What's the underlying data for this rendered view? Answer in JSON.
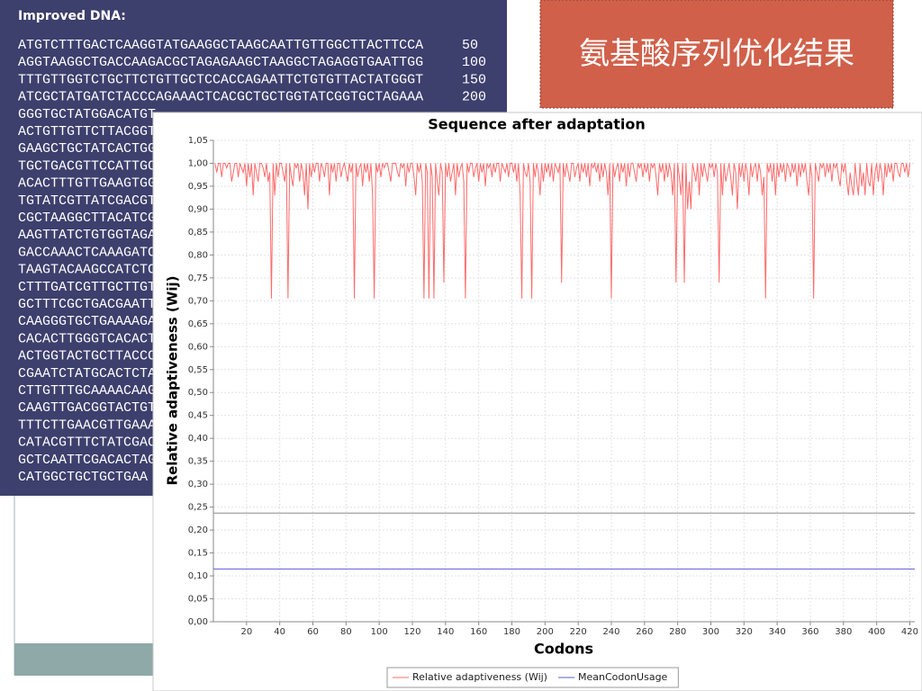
{
  "panel": {
    "title": "Improved DNA:",
    "lines": [
      {
        "sequence": "ATGTCTTTGACTCAAGGTATGAAGGCTAAGCAATTGTTGGCTTACTTCCA",
        "count": "50"
      },
      {
        "sequence": "AGGTAAGGCTGACCAAGACGCTAGAGAAGCTAAGGCTAGAGGTGAATTGG",
        "count": "100"
      },
      {
        "sequence": "TTTGTTGGTCTGCTTCTGTTGCTCCACCAGAATTCTGTGTTACTATGGGT",
        "count": "150"
      },
      {
        "sequence": "ATCGCTATGATCTACCCAGAAACTCACGCTGCTGGTATCGGTGCTAGAAA",
        "count": "200"
      },
      {
        "sequence": "GGGTGCTATGGACATGT"
      },
      {
        "sequence": "ACTGTTGTTCTTACGGT"
      },
      {
        "sequence": "GAAGCTGCTATCACTGG"
      },
      {
        "sequence": "TGCTGACGTTCCATTGC"
      },
      {
        "sequence": "ACACTTTGTTGAAGTGG"
      },
      {
        "sequence": "TGTATCGTTATCGACGT"
      },
      {
        "sequence": "CGCTAAGGCTTACATCG"
      },
      {
        "sequence": "AAGTTATCTGTGGTAGA"
      },
      {
        "sequence": "GACCAAACTCAAAGATC"
      },
      {
        "sequence": "TAAGTACAAGCCATCTC"
      },
      {
        "sequence": "CTTTGATCGTTGCTTGT"
      },
      {
        "sequence": "GCTTTCGCTGACGAATT"
      },
      {
        "sequence": "CAAGGGTGCTGAAAAGA"
      },
      {
        "sequence": "CACACTTGGGTCACACT"
      },
      {
        "sequence": "ACTGGTACTGCTTACCC"
      },
      {
        "sequence": "CGAATCTATGCACTCTA"
      },
      {
        "sequence": "CTTGTTTGCAAAACAAG"
      },
      {
        "sequence": "CAAGTTGACGGTACTGT"
      },
      {
        "sequence": "TTTCTTGAACGTTGAAA"
      },
      {
        "sequence": "CATACGTTTCTATCGAC"
      },
      {
        "sequence": "GCTCAATTCGACACTAG"
      },
      {
        "sequence": "CATGGCTGCTGCTGAA"
      }
    ]
  },
  "banner": {
    "title": "氨基酸序列优化结果"
  },
  "chart_data": {
    "type": "line",
    "title": "Sequence after adaptation",
    "x_label": "Codons",
    "y_label": "Relative adaptiveness (Wij)",
    "xlim": [
      0,
      423
    ],
    "ylim": [
      0,
      1.05
    ],
    "xticks": [
      20,
      40,
      60,
      80,
      100,
      120,
      140,
      160,
      180,
      200,
      220,
      240,
      260,
      280,
      300,
      320,
      340,
      360,
      380,
      400,
      420
    ],
    "yticks": [
      {
        "value": 0,
        "label": "0,00"
      },
      {
        "value": 0.05,
        "label": "0,05"
      },
      {
        "value": 0.1,
        "label": "0,10"
      },
      {
        "value": 0.15,
        "label": "0,15"
      },
      {
        "value": 0.2,
        "label": "0,20"
      },
      {
        "value": 0.25,
        "label": "0,25"
      },
      {
        "value": 0.3,
        "label": "0,30"
      },
      {
        "value": 0.35,
        "label": "0,35"
      },
      {
        "value": 0.4,
        "label": "0,40"
      },
      {
        "value": 0.45,
        "label": "0,45"
      },
      {
        "value": 0.5,
        "label": "0,50"
      },
      {
        "value": 0.55,
        "label": "0,55"
      },
      {
        "value": 0.6,
        "label": "0,60"
      },
      {
        "value": 0.65,
        "label": "0,65"
      },
      {
        "value": 0.7,
        "label": "0,70"
      },
      {
        "value": 0.75,
        "label": "0,75"
      },
      {
        "value": 0.8,
        "label": "0,80"
      },
      {
        "value": 0.85,
        "label": "0,85"
      },
      {
        "value": 0.9,
        "label": "0,90"
      },
      {
        "value": 0.95,
        "label": "0,95"
      },
      {
        "value": 1,
        "label": "1,00"
      },
      {
        "value": 1.05,
        "label": "1,05"
      }
    ],
    "grid": true,
    "legend": "bottom",
    "reference_line": {
      "value": 0.237,
      "color": "#8c8c8c"
    },
    "series": [
      {
        "name": "Relative adaptiveness (Wij)",
        "color": "#ff6b6b",
        "x": [
          1,
          2,
          3,
          4,
          5,
          6,
          7,
          8,
          9,
          10,
          11,
          12,
          13,
          14,
          15,
          16,
          17,
          18,
          19,
          20,
          21,
          22,
          23,
          24,
          25,
          26,
          27,
          28,
          29,
          30,
          31,
          32,
          33,
          34,
          35,
          36,
          37,
          38,
          39,
          40,
          41,
          42,
          43,
          44,
          45,
          46,
          47,
          48,
          49,
          50,
          51,
          52,
          53,
          54,
          55,
          56,
          57,
          58,
          59,
          60,
          61,
          62,
          63,
          64,
          65,
          66,
          67,
          68,
          69,
          70,
          71,
          72,
          73,
          74,
          75,
          76,
          77,
          78,
          79,
          80,
          81,
          82,
          83,
          84,
          85,
          86,
          87,
          88,
          89,
          90,
          91,
          92,
          93,
          94,
          95,
          96,
          97,
          98,
          99,
          100,
          101,
          102,
          103,
          104,
          105,
          106,
          107,
          108,
          109,
          110,
          111,
          112,
          113,
          114,
          115,
          116,
          117,
          118,
          119,
          120,
          121,
          122,
          123,
          124,
          125,
          126,
          127,
          128,
          129,
          130,
          131,
          132,
          133,
          134,
          135,
          136,
          137,
          138,
          139,
          140,
          141,
          142,
          143,
          144,
          145,
          146,
          147,
          148,
          149,
          150,
          151,
          152,
          153,
          154,
          155,
          156,
          157,
          158,
          159,
          160,
          161,
          162,
          163,
          164,
          165,
          166,
          167,
          168,
          169,
          170,
          171,
          172,
          173,
          174,
          175,
          176,
          177,
          178,
          179,
          180,
          181,
          182,
          183,
          184,
          185,
          186,
          187,
          188,
          189,
          190,
          191,
          192,
          193,
          194,
          195,
          196,
          197,
          198,
          199,
          200,
          201,
          202,
          203,
          204,
          205,
          206,
          207,
          208,
          209,
          210,
          211,
          212,
          213,
          214,
          215,
          216,
          217,
          218,
          219,
          220,
          221,
          222,
          223,
          224,
          225,
          226,
          227,
          228,
          229,
          230,
          231,
          232,
          233,
          234,
          235,
          236,
          237,
          238,
          239,
          240,
          241,
          242,
          243,
          244,
          245,
          246,
          247,
          248,
          249,
          250,
          251,
          252,
          253,
          254,
          255,
          256,
          257,
          258,
          259,
          260,
          261,
          262,
          263,
          264,
          265,
          266,
          267,
          268,
          269,
          270,
          271,
          272,
          273,
          274,
          275,
          276,
          277,
          278,
          279,
          280,
          281,
          282,
          283,
          284,
          285,
          286,
          287,
          288,
          289,
          290,
          291,
          292,
          293,
          294,
          295,
          296,
          297,
          298,
          299,
          300,
          301,
          302,
          303,
          304,
          305,
          306,
          307,
          308,
          309,
          310,
          311,
          312,
          313,
          314,
          315,
          316,
          317,
          318,
          319,
          320,
          321,
          322,
          323,
          324,
          325,
          326,
          327,
          328,
          329,
          330,
          331,
          332,
          333,
          334,
          335,
          336,
          337,
          338,
          339,
          340,
          341,
          342,
          343,
          344,
          345,
          346,
          347,
          348,
          349,
          350,
          351,
          352,
          353,
          354,
          355,
          356,
          357,
          358,
          359,
          360,
          361,
          362,
          363,
          364,
          365,
          366,
          367,
          368,
          369,
          370,
          371,
          372,
          373,
          374,
          375,
          376,
          377,
          378,
          379,
          380,
          381,
          382,
          383,
          384,
          385,
          386,
          387,
          388,
          389,
          390,
          391,
          392,
          393,
          394,
          395,
          396,
          397,
          398,
          399,
          400,
          401,
          402,
          403,
          404,
          405,
          406,
          407,
          408,
          409,
          410,
          411,
          412,
          413,
          414,
          415,
          416,
          417,
          418,
          419,
          420
        ],
        "values": [
          1,
          0.98,
          1,
          1,
          0.97,
          1,
          1,
          0.99,
          1,
          1,
          0.96,
          0.98,
          1,
          1,
          0.97,
          1,
          0.99,
          0.98,
          1,
          0.95,
          1,
          0.97,
          1,
          0.93,
          1,
          0.98,
          0.96,
          1,
          1,
          0.99,
          0.97,
          1,
          0.96,
          0.98,
          0.705,
          1,
          0.93,
          1,
          0.97,
          1,
          1,
          0.98,
          0.96,
          1,
          0.705,
          1,
          0.97,
          0.95,
          1,
          0.99,
          1,
          0.96,
          1,
          0.98,
          0.93,
          1,
          0.9,
          1,
          0.97,
          1,
          0.98,
          1,
          1,
          0.96,
          1,
          0.99,
          0.97,
          1,
          1,
          0.93,
          1,
          0.98,
          1,
          0.96,
          1,
          1,
          0.97,
          0.99,
          1,
          0.98,
          0.96,
          1,
          0.98,
          1,
          0.705,
          1,
          0.97,
          0.99,
          1,
          0.95,
          1,
          0.98,
          1,
          0.96,
          1,
          0.93,
          0.705,
          1,
          0.98,
          1,
          0.97,
          1,
          0.99,
          1,
          1,
          0.98,
          0.96,
          1,
          1,
          1,
          0.98,
          0.97,
          1,
          0.99,
          1,
          0.95,
          1,
          0.98,
          1,
          1,
          0.97,
          0.93,
          1,
          0.98,
          1,
          0.96,
          0.705,
          1,
          0.98,
          0.705,
          1,
          0.97,
          0.705,
          1,
          0.96,
          0.93,
          1,
          0.98,
          0.74,
          1,
          0.97,
          1,
          0.96,
          0.98,
          1,
          0.93,
          1,
          0.97,
          0.99,
          1,
          0.96,
          0.705,
          1,
          0.98,
          1,
          1,
          0.97,
          0.99,
          1,
          0.96,
          1,
          0.98,
          1,
          0.95,
          1,
          0.99,
          1,
          0.97,
          1,
          0.98,
          1,
          1,
          0.96,
          1,
          0.99,
          0.98,
          1,
          0.97,
          1,
          1,
          0.98,
          1,
          0.96,
          1,
          0.93,
          0.705,
          1,
          0.98,
          0.97,
          1,
          0.96,
          0.705,
          1,
          0.97,
          1,
          0.98,
          0.93,
          1,
          0.96,
          1,
          0.98,
          1,
          0.97,
          1,
          0.96,
          1,
          0.99,
          0.98,
          1,
          0.74,
          1,
          0.97,
          1,
          0.98,
          0.96,
          1,
          1,
          0.97,
          0.99,
          1,
          0.96,
          1,
          0.98,
          1,
          0.97,
          1,
          0.95,
          1,
          0.99,
          1,
          0.98,
          1,
          0.96,
          1,
          0.97,
          1,
          0.98,
          0.93,
          1,
          0.705,
          1,
          0.97,
          0.99,
          1,
          0.96,
          1,
          0.98,
          1,
          0.95,
          1,
          0.97,
          1,
          1,
          0.98,
          0.96,
          1,
          0.99,
          1,
          0.97,
          1,
          0.98,
          1,
          0.96,
          1,
          0.99,
          1,
          0.97,
          0.93,
          1,
          0.98,
          1,
          0.96,
          1,
          0.97,
          1,
          0.98,
          0.93,
          1,
          0.74,
          1,
          0.97,
          0.93,
          1,
          0.74,
          1,
          0.9,
          0.96,
          0.9,
          1,
          0.98,
          0.96,
          1,
          0.93,
          1,
          0.97,
          1,
          0.98,
          0.96,
          1,
          0.99,
          1,
          0.97,
          1,
          0.98,
          0.74,
          1,
          0.93,
          1,
          0.96,
          0.98,
          1,
          0.97,
          0.93,
          1,
          0.98,
          0.9,
          1,
          0.97,
          1,
          0.96,
          1,
          0.98,
          0.93,
          1,
          0.97,
          0.99,
          1,
          0.96,
          1,
          0.98,
          0.93,
          0.97,
          0.705,
          1,
          0.98,
          1,
          0.96,
          1,
          0.93,
          1,
          0.97,
          1,
          0.98,
          1,
          0.96,
          1,
          0.99,
          0.97,
          1,
          0.98,
          1,
          0.95,
          1,
          0.97,
          1,
          0.98,
          1,
          0.96,
          0.93,
          1,
          0.97,
          0.705,
          1,
          0.98,
          0.96,
          1,
          0.99,
          1,
          0.97,
          1,
          0.98,
          1,
          0.96,
          1,
          0.99,
          1,
          0.97,
          0.95,
          1,
          0.98,
          1,
          0.96,
          0.93,
          0.98,
          0.95,
          0.93,
          1,
          0.96,
          0.93,
          1,
          0.95,
          0.98,
          0.93,
          1,
          0.96,
          0.95,
          1,
          0.93,
          0.98,
          1,
          0.96,
          1,
          0.98,
          0.93,
          1,
          0.97,
          1,
          0.98,
          1,
          0.96,
          1,
          1,
          0.98,
          0.97,
          1,
          1,
          0.98,
          1,
          0.97,
          1
        ]
      },
      {
        "name": "MeanCodonUsage",
        "color": "#5b5bd6",
        "x": [
          0,
          423
        ],
        "values": [
          0.115,
          0.115
        ]
      }
    ]
  }
}
